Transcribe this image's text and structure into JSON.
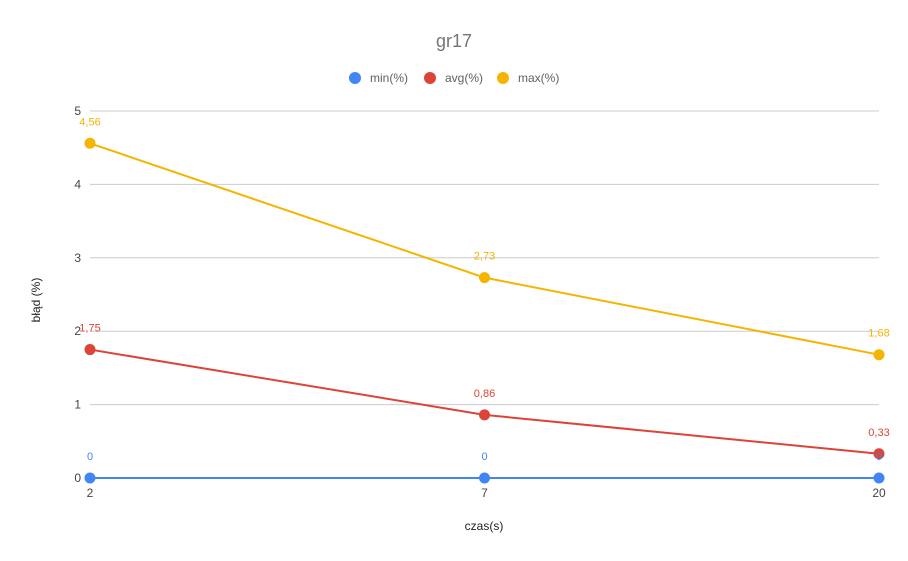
{
  "chart_data": {
    "type": "line",
    "title": "gr17",
    "xlabel": "czas(s)",
    "ylabel": "błąd (%)",
    "categories": [
      "2",
      "7",
      "20"
    ],
    "ylim": [
      0,
      5
    ],
    "yticks": [
      "0",
      "1",
      "2",
      "3",
      "4",
      "5"
    ],
    "grid": true,
    "legend_position": "top",
    "series": [
      {
        "name": "min(%)",
        "color": "#4285f4",
        "values": [
          0,
          0,
          0
        ],
        "labels": [
          "0",
          "0",
          "0"
        ]
      },
      {
        "name": "avg(%)",
        "color": "#db4437",
        "values": [
          1.75,
          0.86,
          0.33
        ],
        "labels": [
          "1,75",
          "0,86",
          "0,33"
        ]
      },
      {
        "name": "max(%)",
        "color": "#f4b400",
        "values": [
          4.56,
          2.73,
          1.68
        ],
        "labels": [
          "4,56",
          "2,73",
          "1,68"
        ]
      }
    ]
  }
}
